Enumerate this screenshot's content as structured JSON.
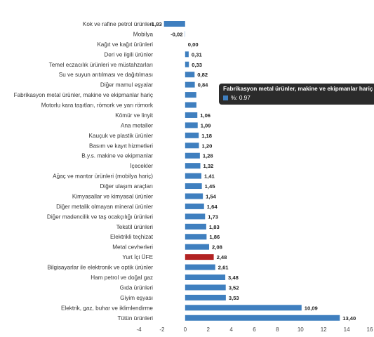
{
  "chart_data": {
    "type": "bar",
    "orientation": "horizontal",
    "title": "",
    "xlabel": "",
    "ylabel": "",
    "xlim": [
      -4,
      16
    ],
    "xticks": [
      -4,
      -2,
      0,
      2,
      4,
      6,
      8,
      10,
      12,
      14,
      16
    ],
    "grid": false,
    "categories": [
      "Kok ve rafine petrol ürünleri",
      "Mobilya",
      "Kağıt ve kağıt ürünleri",
      "Deri ve ilgili ürünler",
      "Temel eczacılık ürünleri ve müstahzarları",
      "Su ve suyun arıtılması ve dağıtılması",
      "Diğer mamul eşyalar",
      "Fabrikasyon metal ürünler, makine ve ekipmanlar hariç",
      "Motorlu kara taşıtları, römork ve yarı römork",
      "Kömür ve linyit",
      "Ana metaller",
      "Kauçuk ve plastik ürünler",
      "Basım ve kayıt hizmetleri",
      "B.y.s. makine ve ekipmanlar",
      "İçecekler",
      "Ağaç ve mantar ürünleri (mobilya hariç)",
      "Diğer ulaşım araçları",
      "Kimyasallar ve kimyasal ürünler",
      "Diğer metalik olmayan mineral ürünler",
      "Diğer madencilik ve taş ocakçılığı ürünleri",
      "Tekstil ürünleri",
      "Elektrikli teçhizat",
      "Metal cevherleri",
      "Yurt İçi ÜFE",
      "Bilgisayarlar ile elektronik ve optik ürünler",
      "Ham petrol ve doğal gaz",
      "Gıda ürünleri",
      "Giyim eşyası",
      "Elektrik, gaz, buhar ve iklimlendirme",
      "Tütün ürünleri"
    ],
    "values": [
      -1.83,
      -0.02,
      0.0,
      0.31,
      0.33,
      0.82,
      0.84,
      0.97,
      0.98,
      1.06,
      1.09,
      1.18,
      1.2,
      1.28,
      1.32,
      1.41,
      1.45,
      1.54,
      1.64,
      1.73,
      1.83,
      1.86,
      2.08,
      2.48,
      2.61,
      3.48,
      3.52,
      3.53,
      10.09,
      13.4
    ],
    "value_labels": [
      "-1,83",
      "-0,02",
      "0,00",
      "0,31",
      "0,33",
      "0,82",
      "0,84",
      "",
      "",
      "1,06",
      "1,09",
      "1,18",
      "1,20",
      "1,28",
      "1,32",
      "1,41",
      "1,45",
      "1,54",
      "1,64",
      "1,73",
      "1,83",
      "1,86",
      "2,08",
      "2,48",
      "2,61",
      "3,48",
      "3,52",
      "3,53",
      "10,09",
      "13,40"
    ],
    "tick_labels": [
      "-4",
      "-2",
      "0",
      "2",
      "4",
      "6",
      "8",
      "10",
      "12",
      "14",
      "16"
    ],
    "highlight_category": "Yurt İçi ÜFE",
    "colors": {
      "bar": "#3f7fbf",
      "highlight": "#b22222"
    }
  },
  "tooltip": {
    "title": "Fabrikasyon metal ürünler, makine ve ekipmanlar hariç",
    "value_text": "%: 0.97",
    "swatch_color": "#3f7fbf"
  }
}
